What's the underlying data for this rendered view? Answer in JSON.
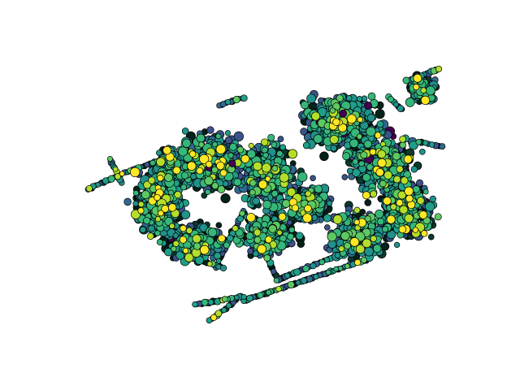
{
  "chart_data": {
    "type": "scatter",
    "projection": "3d",
    "axes_visible": false,
    "grid": false,
    "legend": "none",
    "colormap": "viridis",
    "marker_edge_color": "#000000",
    "background_color": "#ffffff",
    "palette": [
      "#440154",
      "#3b528b",
      "#31688e",
      "#21918c",
      "#1f9e89",
      "#35b779",
      "#5ec962",
      "#b5de2b",
      "#fde725",
      "#0b3a2e",
      "#032219"
    ]
  }
}
